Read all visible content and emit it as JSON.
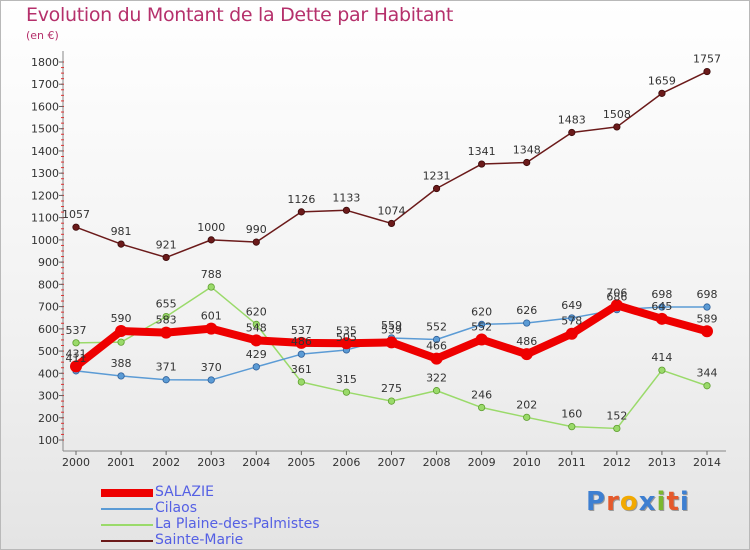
{
  "chart_data": {
    "type": "line",
    "title": "Evolution du Montant de la Dette par Habitant",
    "unit_label": "(en €)",
    "x": [
      "2000",
      "2001",
      "2002",
      "2003",
      "2004",
      "2005",
      "2006",
      "2007",
      "2008",
      "2009",
      "2010",
      "2011",
      "2012",
      "2013",
      "2014"
    ],
    "yticks": [
      100,
      200,
      300,
      400,
      500,
      600,
      700,
      800,
      900,
      1000,
      1100,
      1200,
      1300,
      1400,
      1500,
      1600,
      1700,
      1800
    ],
    "ylim": [
      100,
      1800
    ],
    "grid": false,
    "legend_position": "bottom-left",
    "series": [
      {
        "name": "SALAZIE",
        "color": "#ee0000",
        "values": [
          431,
          590,
          583,
          601,
          548,
          537,
          535,
          539,
          466,
          552,
          486,
          578,
          706,
          645,
          589
        ]
      },
      {
        "name": "Cilaos",
        "color": "#5b9bd5",
        "values": [
          411,
          388,
          371,
          370,
          429,
          486,
          505,
          559,
          552,
          620,
          626,
          649,
          686,
          698,
          698
        ]
      },
      {
        "name": "La Plaine-des-Palmistes",
        "color": "#9ada6a",
        "values": [
          537,
          540,
          655,
          788,
          620,
          361,
          315,
          275,
          322,
          246,
          202,
          160,
          152,
          414,
          344
        ]
      },
      {
        "name": "Sainte-Marie",
        "color": "#6b1a1a",
        "values": [
          1057,
          981,
          921,
          1000,
          990,
          1126,
          1133,
          1074,
          1231,
          1341,
          1348,
          1483,
          1508,
          1659,
          1757
        ]
      }
    ],
    "labels_shown": {
      "SALAZIE": [
        "431",
        "590",
        "583",
        "601",
        "548",
        "537",
        "535",
        "539",
        "466",
        "552",
        "486",
        "578",
        "706",
        "645",
        "589"
      ],
      "Cilaos": [
        "411",
        "388",
        "371",
        "370",
        "429",
        "486",
        "505",
        "559",
        "552",
        "620",
        "626",
        "649",
        "686",
        "698",
        "698"
      ],
      "La Plaine-des-Palmistes": [
        "537",
        "",
        "655",
        "788",
        "620",
        "361",
        "315",
        "275",
        "322",
        "246",
        "202",
        "160",
        "152",
        "414",
        "344"
      ],
      "Sainte-Marie": [
        "1057",
        "981",
        "921",
        "1000",
        "990",
        "1126",
        "1133",
        "1074",
        "1231",
        "1341",
        "1348",
        "1483",
        "1508",
        "1659",
        "1757"
      ]
    }
  },
  "logo": {
    "text": "Proxiti",
    "colors": [
      "#3d7fd1",
      "#e5592b",
      "#f2a900",
      "#3d7fd1",
      "#7bb82f",
      "#e5592b",
      "#3d7fd1"
    ]
  }
}
